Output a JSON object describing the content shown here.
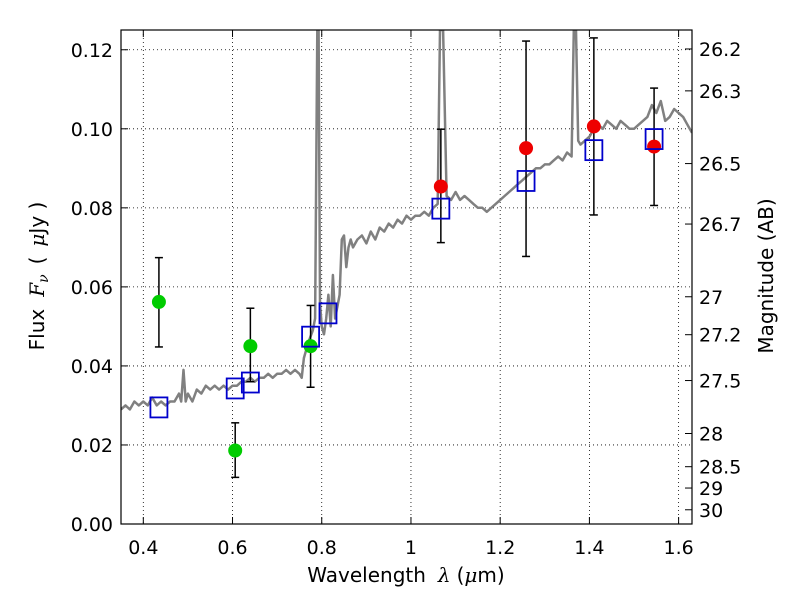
{
  "chart_data": {
    "type": "scatter",
    "xlabel": {
      "prefix": "Wavelength",
      "symbol": "λ",
      "unit_open": "(",
      "unit_mu": "μ",
      "unit_rest": "m)"
    },
    "ylabel": {
      "prefix": "Flux",
      "symbol": "F",
      "symbol_sub": "ν",
      "unit_open": "(",
      "unit_mu": "μ",
      "unit_rest": "Jy )"
    },
    "y2label": "Magnitude (AB)",
    "xlim": [
      0.35,
      1.63
    ],
    "ylim": [
      0.0,
      0.125
    ],
    "grid": true,
    "x_ticks": [
      0.4,
      0.6,
      0.8,
      1.0,
      1.2,
      1.4,
      1.6
    ],
    "x_tick_labels": [
      "0.4",
      "0.6",
      "0.8",
      "1",
      "1.2",
      "1.4",
      "1.6"
    ],
    "y_ticks": [
      0.0,
      0.02,
      0.04,
      0.06,
      0.08,
      0.1,
      0.12
    ],
    "y_tick_labels": [
      "0.00",
      "0.02",
      "0.04",
      "0.06",
      "0.08",
      "0.10",
      "0.12"
    ],
    "mag_ticks": [
      {
        "label": "26.2",
        "flux": 0.1202
      },
      {
        "label": "26.3",
        "flux": 0.1096
      },
      {
        "label": "26.5",
        "flux": 0.0912
      },
      {
        "label": "26.7",
        "flux": 0.0759
      },
      {
        "label": "27",
        "flux": 0.0575
      },
      {
        "label": "27.2",
        "flux": 0.0479
      },
      {
        "label": "27.5",
        "flux": 0.0363
      },
      {
        "label": "28",
        "flux": 0.0229
      },
      {
        "label": "28.5",
        "flux": 0.0145
      },
      {
        "label": "29",
        "flux": 0.0091
      },
      {
        "label": "30",
        "flux": 0.0036
      }
    ],
    "series": [
      {
        "kind": "line",
        "color": "#808080",
        "points": [
          [
            0.35,
            0.029
          ],
          [
            0.36,
            0.03
          ],
          [
            0.37,
            0.029
          ],
          [
            0.38,
            0.031
          ],
          [
            0.39,
            0.03
          ],
          [
            0.4,
            0.031
          ],
          [
            0.41,
            0.03
          ],
          [
            0.42,
            0.032
          ],
          [
            0.43,
            0.03
          ],
          [
            0.44,
            0.031
          ],
          [
            0.45,
            0.03
          ],
          [
            0.46,
            0.031
          ],
          [
            0.47,
            0.031
          ],
          [
            0.48,
            0.033
          ],
          [
            0.485,
            0.031
          ],
          [
            0.49,
            0.039
          ],
          [
            0.495,
            0.031
          ],
          [
            0.5,
            0.033
          ],
          [
            0.51,
            0.031
          ],
          [
            0.52,
            0.034
          ],
          [
            0.53,
            0.033
          ],
          [
            0.54,
            0.035
          ],
          [
            0.55,
            0.034
          ],
          [
            0.56,
            0.035
          ],
          [
            0.57,
            0.034
          ],
          [
            0.58,
            0.035
          ],
          [
            0.59,
            0.034
          ],
          [
            0.6,
            0.035
          ],
          [
            0.61,
            0.035
          ],
          [
            0.62,
            0.036
          ],
          [
            0.63,
            0.036
          ],
          [
            0.64,
            0.037
          ],
          [
            0.65,
            0.036
          ],
          [
            0.66,
            0.037
          ],
          [
            0.67,
            0.037
          ],
          [
            0.68,
            0.038
          ],
          [
            0.69,
            0.037
          ],
          [
            0.7,
            0.038
          ],
          [
            0.71,
            0.038
          ],
          [
            0.72,
            0.039
          ],
          [
            0.73,
            0.038
          ],
          [
            0.74,
            0.039
          ],
          [
            0.75,
            0.038
          ],
          [
            0.755,
            0.037
          ],
          [
            0.76,
            0.042
          ],
          [
            0.77,
            0.046
          ],
          [
            0.78,
            0.049
          ],
          [
            0.785,
            0.052
          ],
          [
            0.79,
            0.125
          ],
          [
            0.793,
            0.125
          ],
          [
            0.796,
            0.056
          ],
          [
            0.8,
            0.05
          ],
          [
            0.805,
            0.048
          ],
          [
            0.81,
            0.052
          ],
          [
            0.815,
            0.058
          ],
          [
            0.82,
            0.05
          ],
          [
            0.825,
            0.063
          ],
          [
            0.83,
            0.052
          ],
          [
            0.835,
            0.055
          ],
          [
            0.84,
            0.058
          ],
          [
            0.845,
            0.072
          ],
          [
            0.85,
            0.073
          ],
          [
            0.855,
            0.065
          ],
          [
            0.86,
            0.07
          ],
          [
            0.865,
            0.072
          ],
          [
            0.87,
            0.07
          ],
          [
            0.88,
            0.072
          ],
          [
            0.89,
            0.073
          ],
          [
            0.9,
            0.071
          ],
          [
            0.91,
            0.074
          ],
          [
            0.92,
            0.072
          ],
          [
            0.93,
            0.075
          ],
          [
            0.94,
            0.074
          ],
          [
            0.95,
            0.076
          ],
          [
            0.96,
            0.075
          ],
          [
            0.97,
            0.077
          ],
          [
            0.98,
            0.076
          ],
          [
            0.99,
            0.078
          ],
          [
            1.0,
            0.077
          ],
          [
            1.01,
            0.078
          ],
          [
            1.02,
            0.078
          ],
          [
            1.03,
            0.079
          ],
          [
            1.04,
            0.078
          ],
          [
            1.05,
            0.08
          ],
          [
            1.06,
            0.081
          ],
          [
            1.065,
            0.125
          ],
          [
            1.072,
            0.125
          ],
          [
            1.08,
            0.083
          ],
          [
            1.09,
            0.082
          ],
          [
            1.1,
            0.084
          ],
          [
            1.11,
            0.082
          ],
          [
            1.12,
            0.083
          ],
          [
            1.13,
            0.082
          ],
          [
            1.14,
            0.081
          ],
          [
            1.15,
            0.08
          ],
          [
            1.16,
            0.08
          ],
          [
            1.17,
            0.079
          ],
          [
            1.18,
            0.08
          ],
          [
            1.19,
            0.081
          ],
          [
            1.2,
            0.082
          ],
          [
            1.21,
            0.083
          ],
          [
            1.22,
            0.084
          ],
          [
            1.23,
            0.085
          ],
          [
            1.24,
            0.086
          ],
          [
            1.25,
            0.087
          ],
          [
            1.26,
            0.088
          ],
          [
            1.27,
            0.089
          ],
          [
            1.28,
            0.09
          ],
          [
            1.29,
            0.09
          ],
          [
            1.3,
            0.091
          ],
          [
            1.31,
            0.091
          ],
          [
            1.32,
            0.092
          ],
          [
            1.33,
            0.093
          ],
          [
            1.34,
            0.092
          ],
          [
            1.35,
            0.094
          ],
          [
            1.36,
            0.093
          ],
          [
            1.365,
            0.125
          ],
          [
            1.37,
            0.125
          ],
          [
            1.375,
            0.097
          ],
          [
            1.38,
            0.096
          ],
          [
            1.39,
            0.097
          ],
          [
            1.4,
            0.098
          ],
          [
            1.41,
            0.1
          ],
          [
            1.42,
            0.101
          ],
          [
            1.43,
            0.1
          ],
          [
            1.44,
            0.102
          ],
          [
            1.45,
            0.101
          ],
          [
            1.46,
            0.1
          ],
          [
            1.47,
            0.102
          ],
          [
            1.48,
            0.101
          ],
          [
            1.49,
            0.1
          ],
          [
            1.5,
            0.1
          ],
          [
            1.51,
            0.101
          ],
          [
            1.52,
            0.102
          ],
          [
            1.53,
            0.103
          ],
          [
            1.54,
            0.106
          ],
          [
            1.55,
            0.104
          ],
          [
            1.56,
            0.107
          ],
          [
            1.57,
            0.102
          ],
          [
            1.58,
            0.103
          ],
          [
            1.59,
            0.105
          ],
          [
            1.6,
            0.104
          ],
          [
            1.61,
            0.103
          ],
          [
            1.62,
            0.101
          ],
          [
            1.63,
            0.099
          ]
        ]
      },
      {
        "kind": "points",
        "marker": "circle",
        "color": "#00cc00",
        "points": [
          {
            "x": 0.435,
            "y": 0.0562,
            "err_lo": 0.0448,
            "err_hi": 0.0674
          },
          {
            "x": 0.606,
            "y": 0.0186,
            "err_lo": 0.0118,
            "err_hi": 0.0256
          },
          {
            "x": 0.64,
            "y": 0.045,
            "err_lo": 0.036,
            "err_hi": 0.0546
          },
          {
            "x": 0.775,
            "y": 0.045,
            "err_lo": 0.0346,
            "err_hi": 0.0553
          }
        ]
      },
      {
        "kind": "points",
        "marker": "circle",
        "color": "#ee0000",
        "points": [
          {
            "x": 1.067,
            "y": 0.0854,
            "err_lo": 0.0712,
            "err_hi": 0.0999
          },
          {
            "x": 1.258,
            "y": 0.0951,
            "err_lo": 0.0677,
            "err_hi": 0.1222
          },
          {
            "x": 1.41,
            "y": 0.1006,
            "err_lo": 0.0782,
            "err_hi": 0.123
          },
          {
            "x": 1.545,
            "y": 0.0955,
            "err_lo": 0.0806,
            "err_hi": 0.1103
          }
        ]
      },
      {
        "kind": "points",
        "marker": "square",
        "color": "#0000cc",
        "points": [
          {
            "x": 0.435,
            "y": 0.0295
          },
          {
            "x": 0.606,
            "y": 0.0343
          },
          {
            "x": 0.64,
            "y": 0.0358
          },
          {
            "x": 0.775,
            "y": 0.0474
          },
          {
            "x": 0.814,
            "y": 0.0533
          },
          {
            "x": 1.067,
            "y": 0.0798
          },
          {
            "x": 1.258,
            "y": 0.0868
          },
          {
            "x": 1.41,
            "y": 0.0946
          },
          {
            "x": 1.545,
            "y": 0.0974
          }
        ]
      }
    ]
  }
}
